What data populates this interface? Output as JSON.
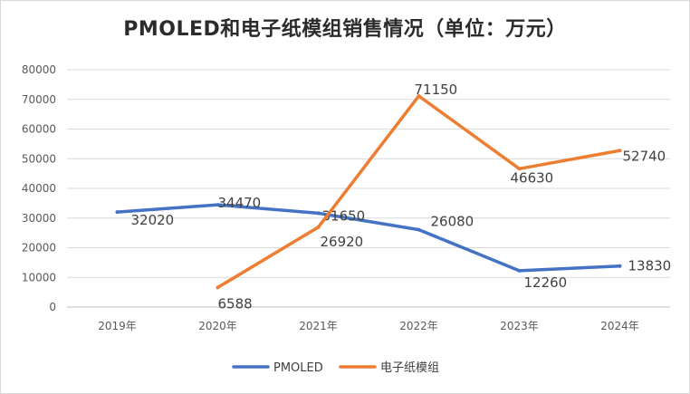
{
  "chart_data": {
    "type": "line",
    "title": "PMOLED和电子纸模组销售情况（单位：万元）",
    "categories": [
      "2019年",
      "2020年",
      "2021年",
      "2022年",
      "2023年",
      "2024年"
    ],
    "ylim": [
      0,
      80000
    ],
    "yticks": [
      "0",
      "10000",
      "20000",
      "30000",
      "40000",
      "50000",
      "60000",
      "70000",
      "80000"
    ],
    "grid": true,
    "legend_position": "bottom",
    "series": [
      {
        "name": "PMOLED",
        "color": "#4472C4",
        "values": [
          32020,
          34470,
          31650,
          26080,
          12260,
          13830
        ],
        "labels": [
          "32020",
          "34470",
          "31650",
          "26080",
          "12260",
          "13830"
        ]
      },
      {
        "name": "电子纸模组",
        "color": "#ED7D31",
        "values": [
          null,
          6588,
          26920,
          71150,
          46630,
          52740
        ],
        "labels": [
          null,
          "6588",
          "26920",
          "71150",
          "46630",
          "52740"
        ]
      }
    ]
  }
}
